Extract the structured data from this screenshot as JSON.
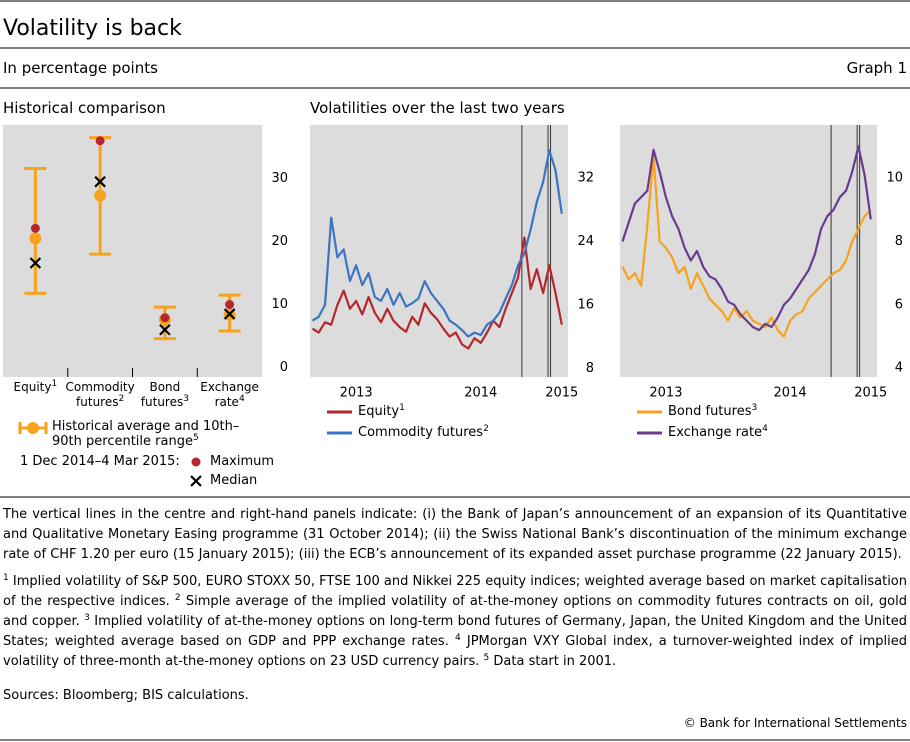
{
  "header": {
    "title": "Volatility is back",
    "subtitle": "In percentage points",
    "graph_label": "Graph 1"
  },
  "chart_data": [
    {
      "type": "range",
      "title": "Historical comparison",
      "categories": [
        "Equity",
        "Commodity futures",
        "Bond futures",
        "Exchange rate"
      ],
      "category_notes": [
        "1",
        "2",
        "3",
        "4"
      ],
      "ylim": [
        -1.5,
        38.5
      ],
      "yticks": [
        0,
        10,
        20,
        30
      ],
      "legend_prefix": "1 Dec 2014–4 Mar 2015:",
      "series": [
        {
          "name": "Historical average and 10th–90th percentile range",
          "note": "5",
          "color": "#f5a31d",
          "values": [
            20.5,
            27.3,
            7.6,
            8.4
          ],
          "low": [
            11.8,
            18.0,
            4.6,
            5.8
          ],
          "high": [
            31.6,
            36.5,
            9.6,
            11.5
          ]
        },
        {
          "name": "Maximum",
          "color": "#b3272d",
          "values": [
            22.1,
            36.0,
            7.9,
            10.0
          ]
        },
        {
          "name": "Median",
          "color": "#000000",
          "values": [
            16.6,
            29.5,
            6.0,
            8.5
          ]
        }
      ]
    },
    {
      "type": "line",
      "title": "Volatilities over the last two years",
      "x": [
        2013.15,
        2013.2,
        2013.25,
        2013.3,
        2013.35,
        2013.4,
        2013.45,
        2013.5,
        2013.55,
        2013.6,
        2013.65,
        2013.7,
        2013.75,
        2013.8,
        2013.85,
        2013.9,
        2013.95,
        2014.0,
        2014.05,
        2014.1,
        2014.15,
        2014.2,
        2014.25,
        2014.3,
        2014.35,
        2014.4,
        2014.45,
        2014.5,
        2014.55,
        2014.6,
        2014.65,
        2014.7,
        2014.75,
        2014.8,
        2014.85,
        2014.9,
        2014.95,
        2015.0,
        2015.05,
        2015.1,
        2015.15
      ],
      "xlim": [
        2013.13,
        2015.2
      ],
      "xticks": [
        {
          "value": 2013.5,
          "label": "2013"
        },
        {
          "value": 2014.5,
          "label": "2014"
        },
        {
          "value": 2015.15,
          "label": "2015"
        }
      ],
      "vlines": [
        2014.83,
        2015.04,
        2015.06
      ],
      "ylim": [
        6.9,
        38.7
      ],
      "yticks": [
        8,
        16,
        24,
        32
      ],
      "series": [
        {
          "name": "Equity",
          "note": "1",
          "color": "#b3272d",
          "values": [
            13.0,
            12.5,
            13.8,
            13.5,
            16.0,
            17.8,
            15.5,
            16.5,
            14.8,
            17.0,
            15.0,
            13.8,
            15.5,
            14.0,
            13.2,
            12.6,
            14.5,
            13.5,
            16.2,
            15.0,
            14.2,
            13.0,
            12.0,
            12.5,
            11.0,
            10.5,
            11.8,
            11.2,
            12.5,
            14.0,
            13.2,
            15.5,
            17.5,
            19.5,
            24.5,
            18.0,
            20.5,
            17.5,
            21.0,
            17.5,
            13.5
          ]
        },
        {
          "name": "Commodity futures",
          "note": "2",
          "color": "#3a74c2",
          "values": [
            14.0,
            14.5,
            16.0,
            27.0,
            22.0,
            23.0,
            19.0,
            21.0,
            18.5,
            20.0,
            17.0,
            16.5,
            18.0,
            16.0,
            17.5,
            15.8,
            16.2,
            16.8,
            19.0,
            17.5,
            16.5,
            15.5,
            14.0,
            13.5,
            12.8,
            12.0,
            12.5,
            12.2,
            13.5,
            14.0,
            15.0,
            16.8,
            18.5,
            21.0,
            22.5,
            25.5,
            29.0,
            31.5,
            35.5,
            33.0,
            27.5
          ]
        }
      ]
    },
    {
      "type": "line",
      "x": [
        2013.15,
        2013.2,
        2013.25,
        2013.3,
        2013.35,
        2013.4,
        2013.45,
        2013.5,
        2013.55,
        2013.6,
        2013.65,
        2013.7,
        2013.75,
        2013.8,
        2013.85,
        2013.9,
        2013.95,
        2014.0,
        2014.05,
        2014.1,
        2014.15,
        2014.2,
        2014.25,
        2014.3,
        2014.35,
        2014.4,
        2014.45,
        2014.5,
        2014.55,
        2014.6,
        2014.65,
        2014.7,
        2014.75,
        2014.8,
        2014.85,
        2014.9,
        2014.95,
        2015.0,
        2015.05,
        2015.1,
        2015.15
      ],
      "xlim": [
        2013.13,
        2015.2
      ],
      "xticks": [
        {
          "value": 2013.5,
          "label": "2013"
        },
        {
          "value": 2014.5,
          "label": "2014"
        },
        {
          "value": 2015.15,
          "label": "2015"
        }
      ],
      "vlines": [
        2014.83,
        2015.04,
        2015.06
      ],
      "ylim": [
        3.72,
        11.68
      ],
      "yticks": [
        4,
        6,
        8,
        10
      ],
      "series": [
        {
          "name": "Bond futures",
          "note": "3",
          "color": "#f5a31d",
          "values": [
            7.2,
            6.8,
            7.0,
            6.6,
            8.5,
            10.7,
            8.0,
            7.8,
            7.5,
            7.0,
            7.2,
            6.5,
            7.0,
            6.6,
            6.2,
            6.0,
            5.8,
            5.5,
            5.9,
            5.6,
            5.8,
            5.5,
            5.4,
            5.3,
            5.6,
            5.2,
            5.0,
            5.5,
            5.7,
            5.8,
            6.2,
            6.4,
            6.6,
            6.8,
            7.0,
            7.1,
            7.4,
            8.0,
            8.4,
            8.8,
            9.0
          ]
        },
        {
          "name": "Exchange rate",
          "note": "4",
          "color": "#6a3a8e",
          "values": [
            8.0,
            8.6,
            9.2,
            9.4,
            9.6,
            10.9,
            10.2,
            9.4,
            8.8,
            8.4,
            7.8,
            7.4,
            7.7,
            7.2,
            6.9,
            6.8,
            6.5,
            6.1,
            6.0,
            5.7,
            5.5,
            5.3,
            5.2,
            5.4,
            5.3,
            5.6,
            6.0,
            6.2,
            6.5,
            6.8,
            7.1,
            7.6,
            8.4,
            8.8,
            9.0,
            9.4,
            9.6,
            10.2,
            11.0,
            10.1,
            8.7
          ]
        }
      ]
    }
  ],
  "notes": "The vertical lines in the centre and right-hand panels indicate: (i) the Bank of Japan’s announcement of an expansion of its Quantitative and Qualitative Monetary Easing programme (31 October 2014); (ii) the Swiss National Bank’s discontinuation of the minimum exchange rate of CHF 1.20 per euro (15 January 2015); (iii) the ECB’s announcement of its expanded asset purchase programme (22 January 2015).",
  "footnotes": [
    {
      "marker": "1",
      "text": "Implied volatility of S&P 500, EURO STOXX 50, FTSE 100 and Nikkei 225 equity indices; weighted average based on market capitalisation of the respective indices."
    },
    {
      "marker": "2",
      "text": "Simple average of the implied volatility of at-the-money options on commodity futures contracts on oil, gold and copper."
    },
    {
      "marker": "3",
      "text": "Implied volatility of at-the-money options on long-term bond futures of Germany, Japan, the United Kingdom and the United States; weighted average based on GDP and PPP exchange rates."
    },
    {
      "marker": "4",
      "text": "JPMorgan VXY Global index, a turnover-weighted index of implied volatility of three-month at-the-money options on 23 USD currency pairs."
    },
    {
      "marker": "5",
      "text": "Data start in 2001."
    }
  ],
  "sources": "Sources: Bloomberg; BIS calculations.",
  "copyright": "© Bank for International Settlements"
}
